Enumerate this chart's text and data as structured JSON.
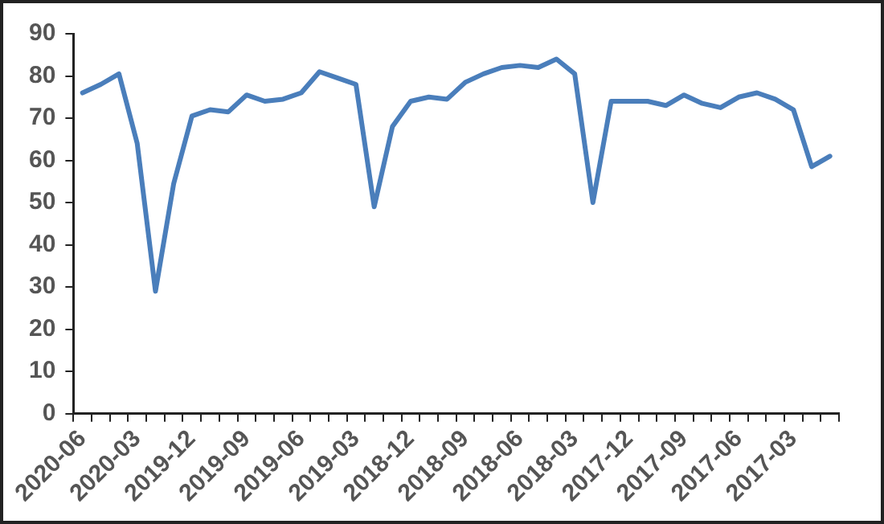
{
  "chart_data": {
    "type": "line",
    "categories": [
      "2020-06",
      null,
      null,
      "2020-03",
      null,
      null,
      "2019-12",
      null,
      null,
      "2019-09",
      null,
      null,
      "2019-06",
      null,
      null,
      "2019-03",
      null,
      null,
      "2018-12",
      null,
      null,
      "2018-09",
      null,
      null,
      "2018-06",
      null,
      null,
      "2018-03",
      null,
      null,
      "2017-12",
      null,
      null,
      "2017-09",
      null,
      null,
      "2017-06",
      null,
      null,
      "2017-03",
      null,
      null
    ],
    "series": [
      {
        "color": "#4a7ebb",
        "values": [
          76,
          78,
          80.5,
          64,
          29,
          54.5,
          70.5,
          72,
          71.5,
          75.5,
          74,
          74.5,
          76,
          81,
          79.5,
          78,
          49,
          68,
          74,
          75,
          74.5,
          78.5,
          80.5,
          82,
          82.5,
          82,
          84,
          80.5,
          50,
          74,
          74,
          74,
          73,
          75.5,
          73.5,
          72.5,
          75,
          76,
          74.5,
          72,
          58.5,
          61
        ]
      }
    ],
    "ylim": [
      0,
      90
    ],
    "yticks": [
      0,
      10,
      20,
      30,
      40,
      50,
      60,
      70,
      80,
      90
    ],
    "grid": false,
    "legend": false,
    "marker": "none",
    "line_style": "solid"
  }
}
